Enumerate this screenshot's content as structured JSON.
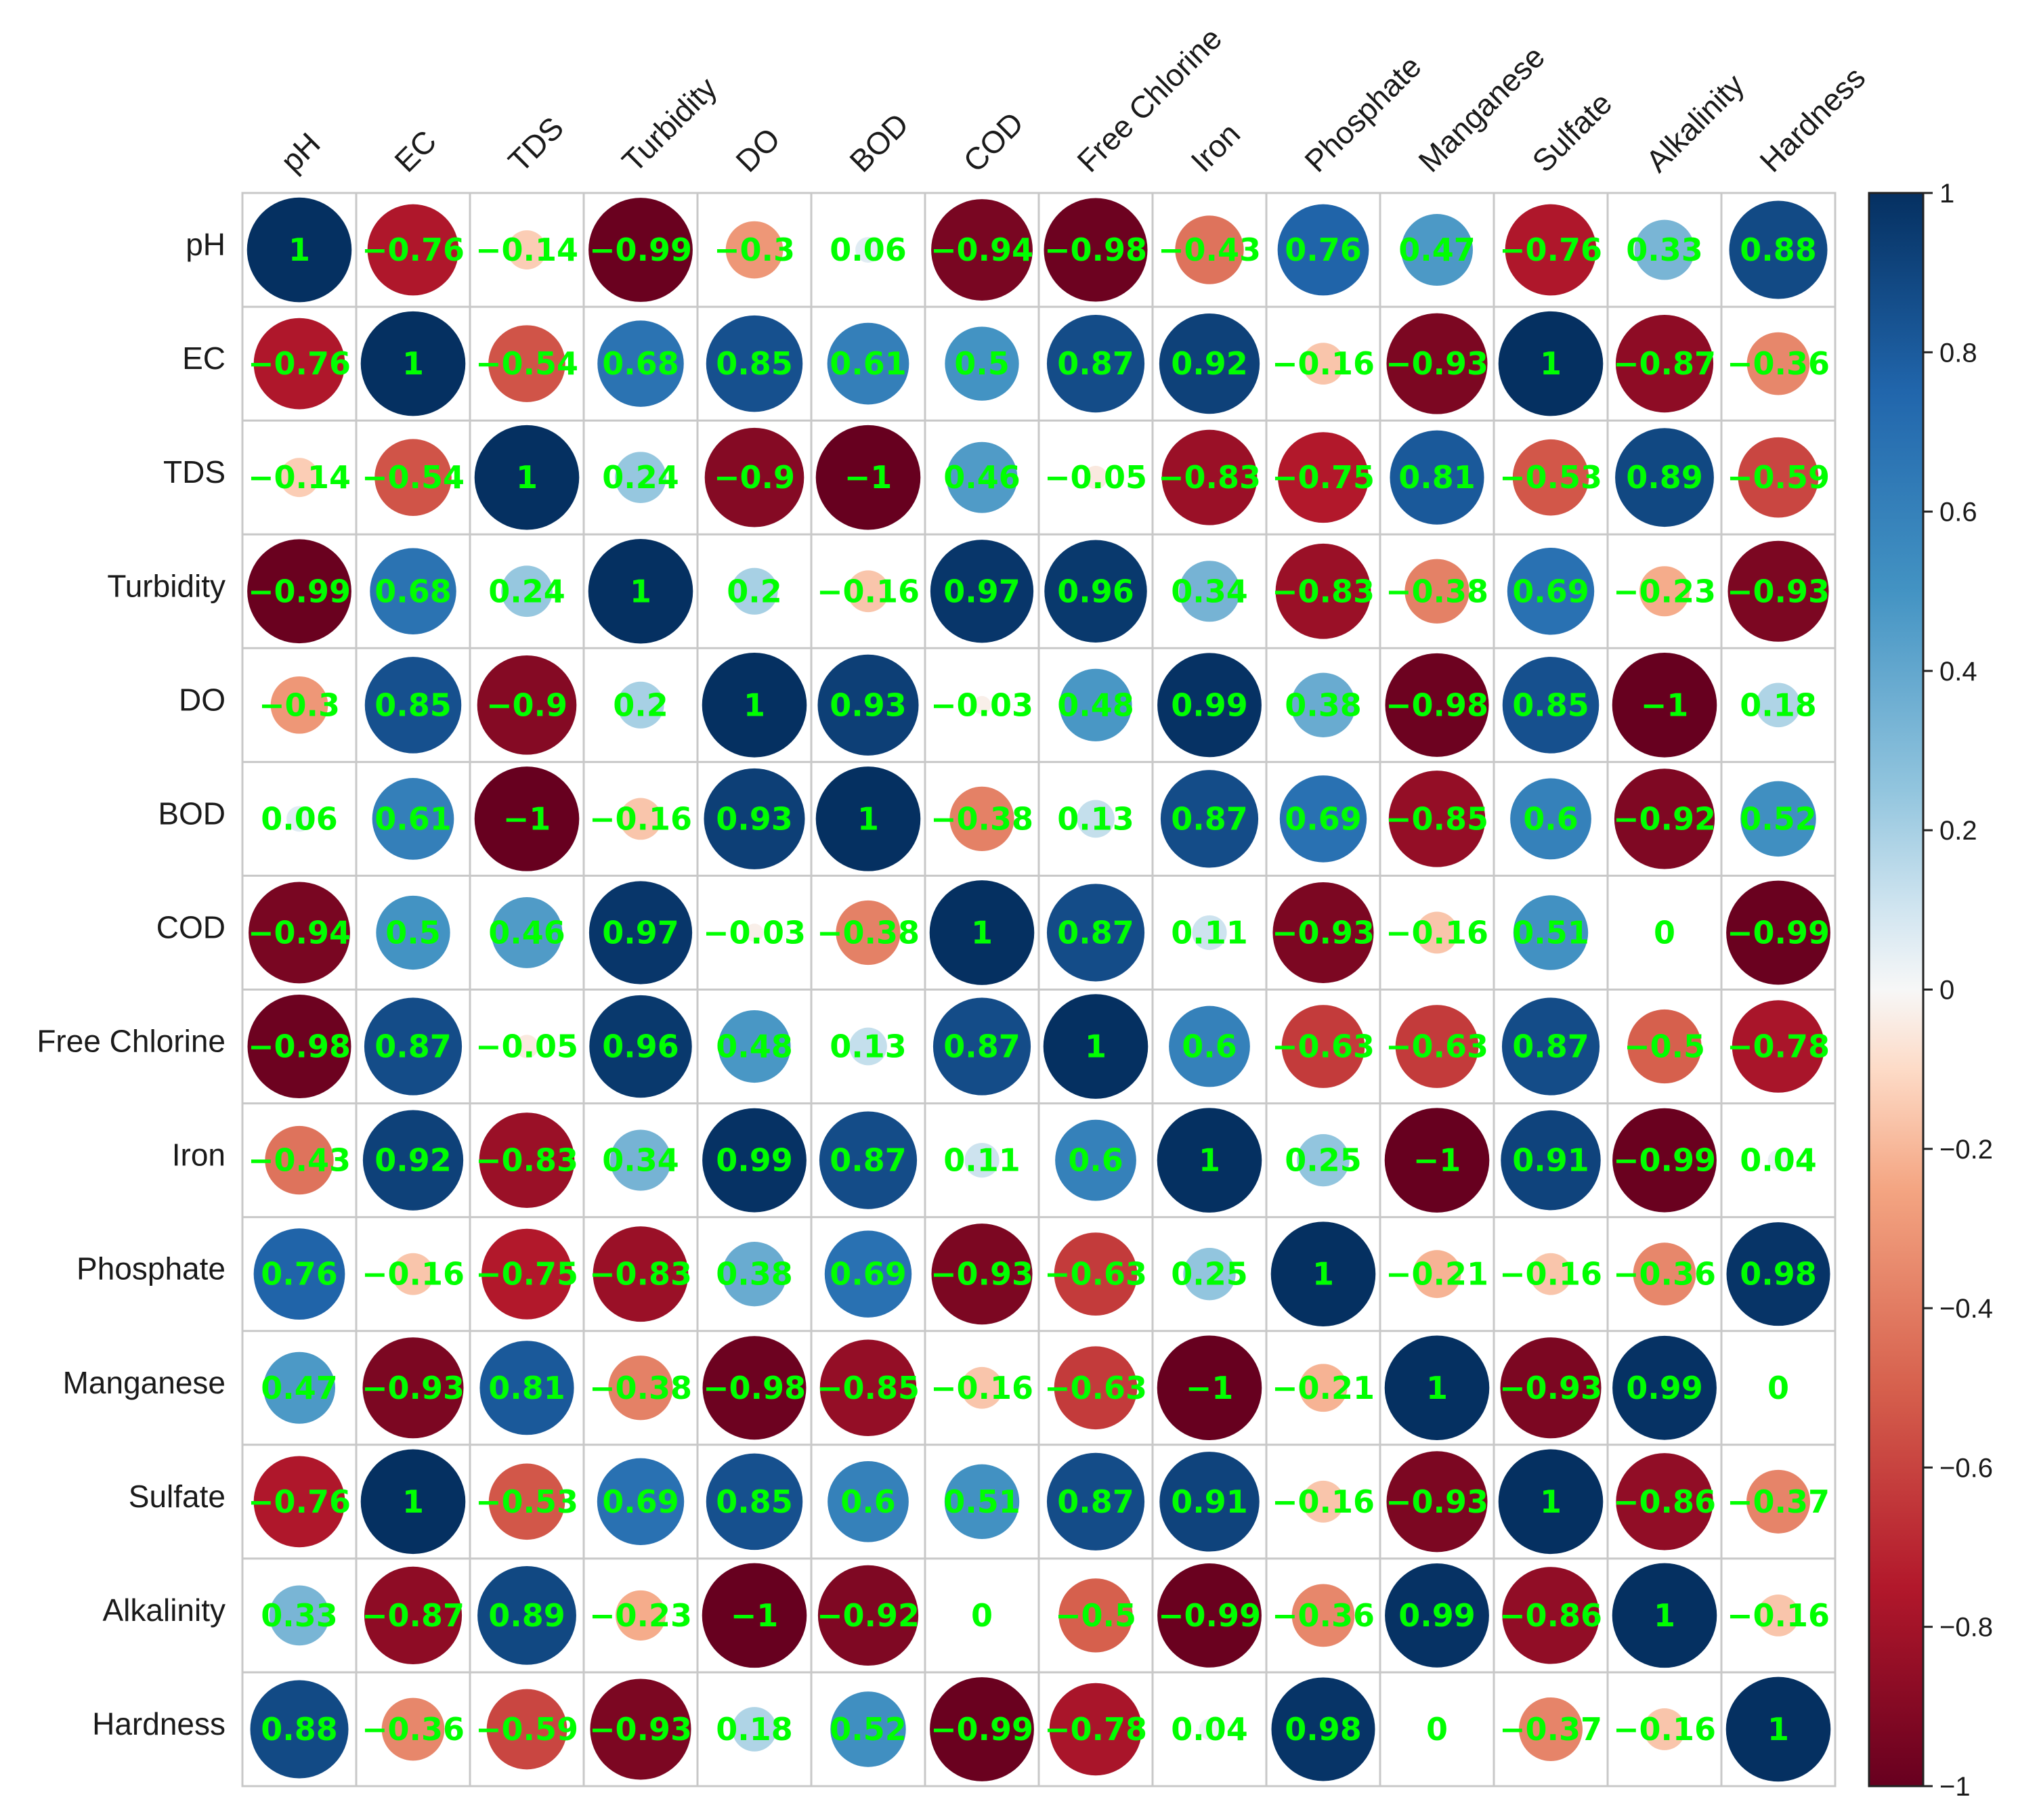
{
  "chart_data": {
    "type": "heatmap",
    "subtype": "correlation-circle",
    "variables": [
      "pH",
      "EC",
      "TDS",
      "Turbidity",
      "DO",
      "BOD",
      "COD",
      "Free Chlorine",
      "Iron",
      "Phosphate",
      "Manganese",
      "Sulfate",
      "Alkalinity",
      "Hardness"
    ],
    "matrix": [
      [
        1,
        -0.76,
        -0.14,
        -0.99,
        -0.3,
        0.06,
        -0.94,
        -0.98,
        -0.43,
        0.76,
        0.47,
        -0.76,
        0.33,
        0.88
      ],
      [
        -0.76,
        1,
        -0.54,
        0.68,
        0.85,
        0.61,
        0.5,
        0.87,
        0.92,
        -0.16,
        -0.93,
        1,
        -0.87,
        -0.36
      ],
      [
        -0.14,
        -0.54,
        1,
        0.24,
        -0.9,
        -1,
        0.46,
        -0.05,
        -0.83,
        -0.75,
        0.81,
        -0.53,
        0.89,
        -0.59
      ],
      [
        -0.99,
        0.68,
        0.24,
        1,
        0.2,
        -0.16,
        0.97,
        0.96,
        0.34,
        -0.83,
        -0.38,
        0.69,
        -0.23,
        -0.93
      ],
      [
        -0.3,
        0.85,
        -0.9,
        0.2,
        1,
        0.93,
        -0.03,
        0.48,
        0.99,
        0.38,
        -0.98,
        0.85,
        -1,
        0.18
      ],
      [
        0.06,
        0.61,
        -1,
        -0.16,
        0.93,
        1,
        -0.38,
        0.13,
        0.87,
        0.69,
        -0.85,
        0.6,
        -0.92,
        0.52
      ],
      [
        -0.94,
        0.5,
        0.46,
        0.97,
        -0.03,
        -0.38,
        1,
        0.87,
        0.11,
        -0.93,
        -0.16,
        0.51,
        0,
        -0.99
      ],
      [
        -0.98,
        0.87,
        -0.05,
        0.96,
        0.48,
        0.13,
        0.87,
        1,
        0.6,
        -0.63,
        -0.63,
        0.87,
        -0.5,
        -0.78
      ],
      [
        -0.43,
        0.92,
        -0.83,
        0.34,
        0.99,
        0.87,
        0.11,
        0.6,
        1,
        0.25,
        -1,
        0.91,
        -0.99,
        0.04
      ],
      [
        0.76,
        -0.16,
        -0.75,
        -0.83,
        0.38,
        0.69,
        -0.93,
        -0.63,
        0.25,
        1,
        -0.21,
        -0.16,
        -0.36,
        0.98
      ],
      [
        0.47,
        -0.93,
        0.81,
        -0.38,
        -0.98,
        -0.85,
        -0.16,
        -0.63,
        -1,
        -0.21,
        1,
        -0.93,
        0.99,
        0
      ],
      [
        -0.76,
        1,
        -0.53,
        0.69,
        0.85,
        0.6,
        0.51,
        0.87,
        0.91,
        -0.16,
        -0.93,
        1,
        -0.86,
        -0.37
      ],
      [
        0.33,
        -0.87,
        0.89,
        -0.23,
        -1,
        -0.92,
        0,
        -0.5,
        -0.99,
        -0.36,
        0.99,
        -0.86,
        1,
        -0.16
      ],
      [
        0.88,
        -0.36,
        -0.59,
        -0.93,
        0.18,
        0.52,
        -0.99,
        -0.78,
        0.04,
        0.98,
        0,
        -0.37,
        -0.16,
        1
      ]
    ],
    "colorbar": {
      "range": [
        -1,
        1
      ],
      "ticks": [
        1,
        0.8,
        0.6,
        0.4,
        0.2,
        0,
        -0.2,
        -0.4,
        -0.6,
        -0.8,
        -1
      ],
      "tick_labels": [
        "1",
        "0.8",
        "0.6",
        "0.4",
        "0.2",
        "0",
        "−0.2",
        "−0.4",
        "−0.6",
        "−0.8",
        "−1"
      ],
      "placement": "right"
    },
    "colors": {
      "negative_strong": "#67001f",
      "neutral": "#f7f7f7",
      "positive_strong": "#053061",
      "label_text": "#00ff00",
      "grid": "#c8c8c8"
    },
    "grid": true
  }
}
